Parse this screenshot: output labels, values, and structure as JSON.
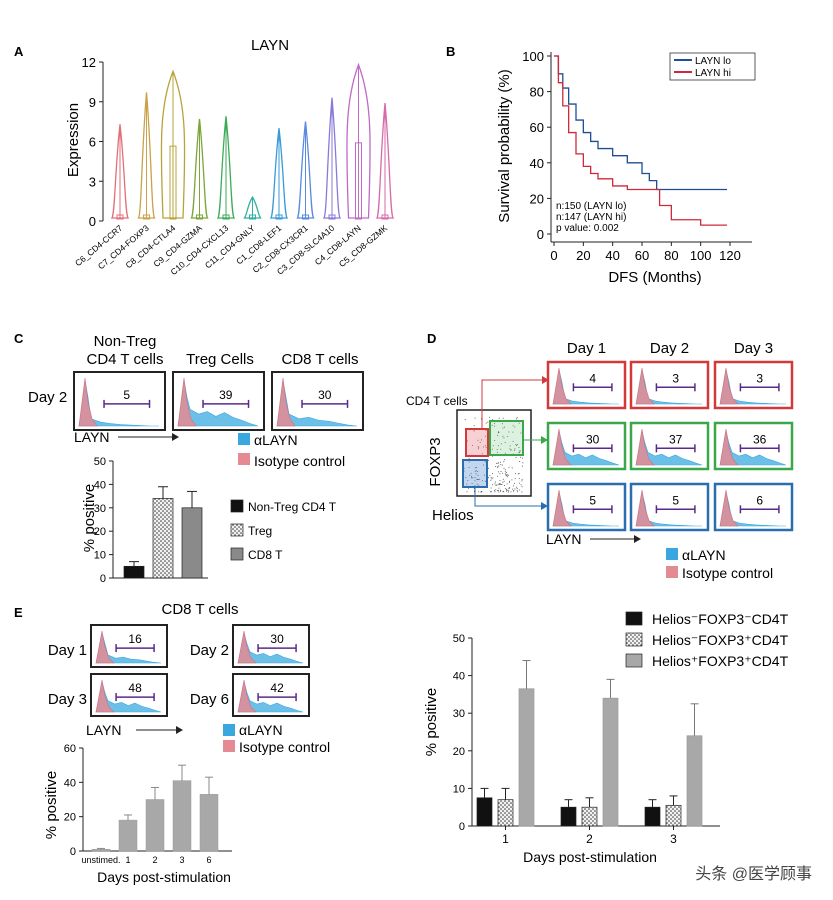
{
  "panels": {
    "A": {
      "letter": "A",
      "title": "LAYN",
      "ylabel": "Expression",
      "yticks": [
        "0",
        "3",
        "6",
        "9",
        "12"
      ],
      "categories": [
        "C6_CD4-CCR7",
        "C7_CD4-FOXP3",
        "C8_CD4-CTLA4",
        "C9_CD4-GZMA",
        "C10_CD4-CXCL13",
        "C11_CD4-GNLY",
        "C1_CD8-LEF1",
        "C2_CD8-CX3CR1",
        "C3_CD8-SLC4A10",
        "C4_CD8-LAYN",
        "C5_CD8-GZMK"
      ],
      "max_expression": [
        7.3,
        9.7,
        11.3,
        7.7,
        7.9,
        1.8,
        7.0,
        7.5,
        9.3,
        11.8,
        8.9
      ],
      "colors": [
        "#e0707a",
        "#c9a24a",
        "#b8a33a",
        "#7aa63a",
        "#3daa5a",
        "#2fb0a0",
        "#3a9ad8",
        "#5a8ae0",
        "#8a7ad8",
        "#c06ac8",
        "#d86aa8"
      ]
    },
    "B": {
      "letter": "B",
      "ylabel": "Survival probability (%)",
      "xlabel": "DFS (Months)",
      "yticks": [
        "0",
        "20",
        "40",
        "60",
        "80",
        "100"
      ],
      "xticks": [
        "0",
        "20",
        "40",
        "60",
        "80",
        "100",
        "120"
      ],
      "legend": [
        {
          "name": "LAYN lo",
          "color": "#1f4e96"
        },
        {
          "name": "LAYN hi",
          "color": "#d0283a"
        }
      ],
      "stats": [
        "n:150 (LAYN lo)",
        "n:147 (LAYN hi)",
        "p value: 0.002"
      ]
    },
    "C": {
      "letter": "C",
      "row_label": "Day 2",
      "columns": [
        "Non-Treg\nCD4 T cells",
        "Treg Cells",
        "CD8 T cells"
      ],
      "gate_values": [
        "5",
        "39",
        "30"
      ],
      "axis_label": "LAYN",
      "legend": [
        "αLAYN",
        "Isotype control"
      ],
      "bar_ylabel": "% positive",
      "bar_yticks": [
        "0",
        "10",
        "20",
        "30",
        "40",
        "50"
      ],
      "bar_legend": [
        "Non-Treg CD4 T",
        "Treg",
        "CD8 T"
      ]
    },
    "D": {
      "letter": "D",
      "days": [
        "Day 1",
        "Day 2",
        "Day 3"
      ],
      "dot_title": "CD4 T cells",
      "dot_y": "FOXP3",
      "dot_x": "Helios",
      "rows": [
        {
          "color": "#d23a3a",
          "values": [
            "4",
            "3",
            "3"
          ]
        },
        {
          "color": "#3aa84a",
          "values": [
            "30",
            "37",
            "36"
          ]
        },
        {
          "color": "#2a6eb0",
          "values": [
            "5",
            "5",
            "6"
          ]
        }
      ],
      "axis_label": "LAYN",
      "legend": [
        "αLAYN",
        "Isotype control"
      ]
    },
    "E": {
      "letter": "E",
      "title": "CD8 T cells",
      "hist": [
        {
          "day": "Day 1",
          "value": "16"
        },
        {
          "day": "Day 2",
          "value": "30"
        },
        {
          "day": "Day 3",
          "value": "48"
        },
        {
          "day": "Day 6",
          "value": "42"
        }
      ],
      "axis_label": "LAYN",
      "legend": [
        "αLAYN",
        "Isotype control"
      ],
      "bar_ylabel": "% positive",
      "bar_xlabel": "Days post-stimulation",
      "bar_yticks": [
        "0",
        "20",
        "40",
        "60"
      ]
    },
    "F": {
      "legend": [
        "Helios⁻FOXP3⁻CD4T",
        "Helios⁻FOXP3⁺CD4T",
        "Helios⁺FOXP3⁺CD4T"
      ],
      "ylabel": "% positive",
      "xlabel": "Days post-stimulation",
      "yticks": [
        "0",
        "10",
        "20",
        "30",
        "40",
        "50"
      ]
    }
  },
  "watermark": "头条 @医学顾事",
  "chart_data": [
    {
      "panel": "A",
      "type": "violin",
      "title": "LAYN",
      "ylabel": "Expression",
      "ylim": [
        0,
        12
      ],
      "categories": [
        "C6_CD4-CCR7",
        "C7_CD4-FOXP3",
        "C8_CD4-CTLA4",
        "C9_CD4-GZMA",
        "C10_CD4-CXCL13",
        "C11_CD4-GNLY",
        "C1_CD8-LEF1",
        "C2_CD8-CX3CR1",
        "C3_CD8-SLC4A10",
        "C4_CD8-LAYN",
        "C5_CD8-GZMK"
      ],
      "max": [
        7.3,
        9.7,
        11.3,
        7.7,
        7.9,
        1.8,
        7.0,
        7.5,
        9.3,
        11.8,
        8.9
      ]
    },
    {
      "panel": "B",
      "type": "line",
      "xlabel": "DFS (Months)",
      "ylabel": "Survival probability (%)",
      "xlim": [
        0,
        120
      ],
      "ylim": [
        0,
        100
      ],
      "series": [
        {
          "name": "LAYN lo",
          "x": [
            0,
            3,
            6,
            10,
            15,
            20,
            25,
            30,
            40,
            50,
            60,
            65,
            70,
            80,
            100,
            118
          ],
          "y": [
            100,
            90,
            82,
            73,
            64,
            57,
            52,
            48,
            44,
            40,
            34,
            30,
            25,
            25,
            25,
            25
          ]
        },
        {
          "name": "LAYN hi",
          "x": [
            0,
            3,
            6,
            10,
            15,
            20,
            25,
            30,
            40,
            50,
            60,
            68,
            72,
            80,
            100,
            118
          ],
          "y": [
            100,
            85,
            72,
            57,
            45,
            38,
            34,
            31,
            27,
            25,
            25,
            25,
            16,
            8,
            5,
            5
          ]
        }
      ]
    },
    {
      "panel": "C",
      "type": "bar",
      "ylabel": "% positive",
      "ylim": [
        0,
        50
      ],
      "categories": [
        "Non-Treg CD4 T",
        "Treg",
        "CD8 T"
      ],
      "values": [
        5,
        34,
        30
      ],
      "errors": [
        2,
        5,
        7
      ]
    },
    {
      "panel": "E",
      "type": "bar",
      "xlabel": "Days post-stimulation",
      "ylabel": "% positive",
      "ylim": [
        0,
        60
      ],
      "categories": [
        "unstimed.",
        "1",
        "2",
        "3",
        "6"
      ],
      "values": [
        1,
        18,
        30,
        41,
        33
      ],
      "errors": [
        0.5,
        3,
        7,
        9,
        10
      ]
    },
    {
      "panel": "F",
      "type": "bar",
      "xlabel": "Days post-stimulation",
      "ylabel": "% positive",
      "ylim": [
        0,
        50
      ],
      "categories": [
        "1",
        "2",
        "3"
      ],
      "series": [
        {
          "name": "Helios⁻FOXP3⁻CD4T",
          "values": [
            7.5,
            5,
            5
          ],
          "errors": [
            2.5,
            2,
            2
          ]
        },
        {
          "name": "Helios⁻FOXP3⁺CD4T",
          "values": [
            7,
            5,
            5.5
          ],
          "errors": [
            3,
            2.5,
            2.5
          ]
        },
        {
          "name": "Helios⁺FOXP3⁺CD4T",
          "values": [
            36.5,
            34,
            24
          ],
          "errors": [
            7.5,
            5,
            8.5
          ]
        }
      ]
    }
  ]
}
